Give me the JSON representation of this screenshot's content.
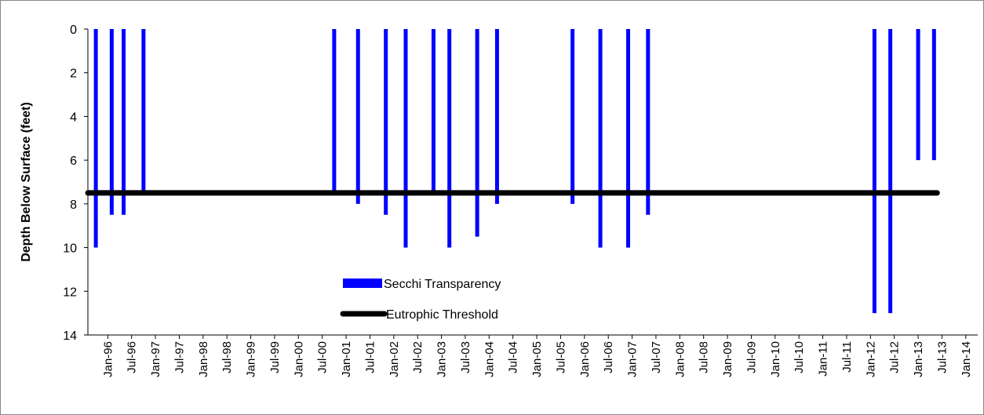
{
  "chart_data": {
    "type": "bar",
    "y_label": "Depth Below Surface (feet)",
    "series": [
      {
        "name": "Secchi Transparency",
        "color": "#0000ff",
        "x": [
          "1995-10",
          "1996-02",
          "1996-05",
          "1996-10",
          "2000-10",
          "2001-04",
          "2001-11",
          "2002-04",
          "2002-11",
          "2003-03",
          "2003-10",
          "2004-03",
          "2005-10",
          "2006-05",
          "2006-12",
          "2007-05",
          "2012-02",
          "2012-06",
          "2013-01",
          "2013-05"
        ],
        "values": [
          10,
          8.5,
          8.5,
          7.5,
          7.5,
          8,
          8.5,
          10,
          7.5,
          10,
          9.5,
          8,
          8,
          10,
          10,
          8.5,
          13,
          13,
          6,
          6
        ]
      }
    ],
    "threshold": {
      "name": "Eutrophic Threshold",
      "value": 7.5,
      "color": "#000000"
    },
    "ylim": [
      0,
      14
    ],
    "yticks": [
      0,
      2,
      4,
      6,
      8,
      10,
      12,
      14
    ],
    "y_reversed": true,
    "xlim": [
      "1995-08",
      "2014-04"
    ],
    "xticks": [
      {
        "value": "1996-01",
        "label": "Jan-96"
      },
      {
        "value": "1996-07",
        "label": "Jul-96"
      },
      {
        "value": "1997-01",
        "label": "Jan-97"
      },
      {
        "value": "1997-07",
        "label": "Jul-97"
      },
      {
        "value": "1998-01",
        "label": "Jan-98"
      },
      {
        "value": "1998-07",
        "label": "Jul-98"
      },
      {
        "value": "1999-01",
        "label": "Jan-99"
      },
      {
        "value": "1999-07",
        "label": "Jul-99"
      },
      {
        "value": "2000-01",
        "label": "Jan-00"
      },
      {
        "value": "2000-07",
        "label": "Jul-00"
      },
      {
        "value": "2001-01",
        "label": "Jan-01"
      },
      {
        "value": "2001-07",
        "label": "Jul-01"
      },
      {
        "value": "2002-01",
        "label": "Jan-02"
      },
      {
        "value": "2002-07",
        "label": "Jul-02"
      },
      {
        "value": "2003-01",
        "label": "Jan-03"
      },
      {
        "value": "2003-07",
        "label": "Jul-03"
      },
      {
        "value": "2004-01",
        "label": "Jan-04"
      },
      {
        "value": "2004-07",
        "label": "Jul-04"
      },
      {
        "value": "2005-01",
        "label": "Jan-05"
      },
      {
        "value": "2005-07",
        "label": "Jul-05"
      },
      {
        "value": "2006-01",
        "label": "Jan-06"
      },
      {
        "value": "2006-07",
        "label": "Jul-06"
      },
      {
        "value": "2007-01",
        "label": "Jan-07"
      },
      {
        "value": "2007-07",
        "label": "Jul-07"
      },
      {
        "value": "2008-01",
        "label": "Jan-08"
      },
      {
        "value": "2008-07",
        "label": "Jul-08"
      },
      {
        "value": "2009-01",
        "label": "Jan-09"
      },
      {
        "value": "2009-07",
        "label": "Jul-09"
      },
      {
        "value": "2010-01",
        "label": "Jan-10"
      },
      {
        "value": "2010-07",
        "label": "Jul-10"
      },
      {
        "value": "2011-01",
        "label": "Jan-11"
      },
      {
        "value": "2011-07",
        "label": "Jul-11"
      },
      {
        "value": "2012-01",
        "label": "Jan-12"
      },
      {
        "value": "2012-07",
        "label": "Jul-12"
      },
      {
        "value": "2013-01",
        "label": "Jan-13"
      },
      {
        "value": "2013-07",
        "label": "Jul-13"
      },
      {
        "value": "2014-01",
        "label": "Jan-14"
      }
    ],
    "grid": false
  }
}
